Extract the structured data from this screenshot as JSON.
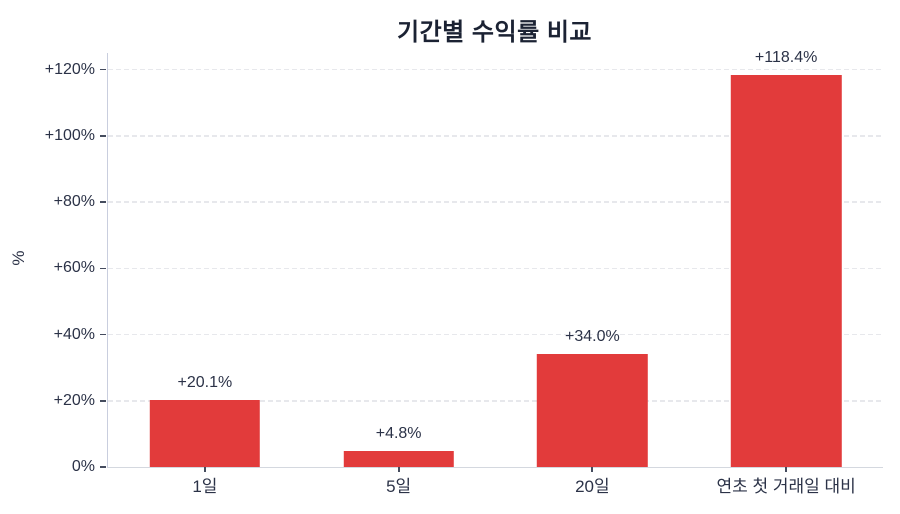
{
  "chart_data": {
    "type": "bar",
    "title": "기간별 수익률 비교",
    "xlabel": "",
    "ylabel": "%",
    "categories": [
      "1일",
      "5일",
      "20일",
      "연초 첫 거래일 대비"
    ],
    "values": [
      20.1,
      4.8,
      34.0,
      118.4
    ],
    "bar_labels": [
      "+20.1%",
      "+4.8%",
      "+34.0%",
      "+118.4%"
    ],
    "yticks": [
      0,
      20,
      40,
      60,
      80,
      100,
      120
    ],
    "ytick_labels": [
      "0%",
      "+20%",
      "+40%",
      "+60%",
      "+80%",
      "+100%",
      "+120%"
    ],
    "ylim": [
      0,
      125
    ],
    "grid": "horizontal-dashed",
    "legend": "none",
    "colors": {
      "bar": "#e23b3b",
      "title_text": "#1b2233",
      "label_text": "#2b3247",
      "gridline": "#e7e8ec",
      "axis_line": "#cdd1da",
      "tick_mark": "#454c5e",
      "background": "#ffffff"
    }
  }
}
